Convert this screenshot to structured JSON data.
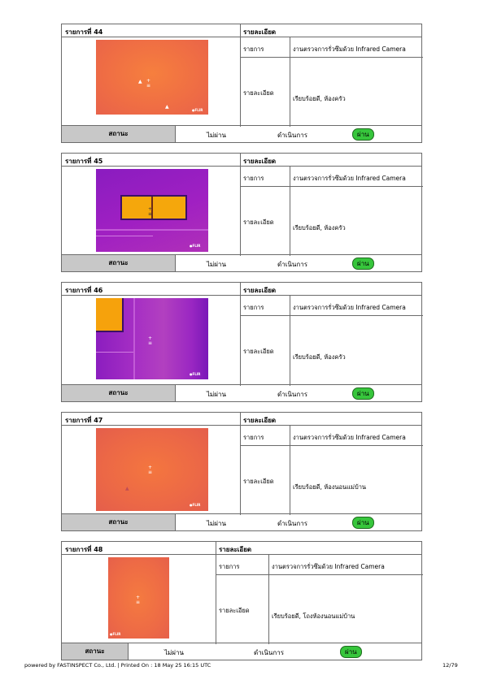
{
  "labels": {
    "item_prefix": "รายการที่",
    "detail_header": "รายละเอียด",
    "item_label": "รายการ",
    "detail_label": "รายละเอียด",
    "status_label": "สถานะ",
    "option_fail": "ไม่ผ่าน",
    "option_in_progress": "ดำเนินการ",
    "option_pass": "ผ่าน",
    "flir_mark": "●FLIR"
  },
  "items": [
    {
      "number": "44",
      "title": "งานตรวจการรั่วซึมด้วย Infrared Camera",
      "detail": "เรียบร้อยดี, ห้องครัว"
    },
    {
      "number": "45",
      "title": "งานตรวจการรั่วซึมด้วย Infrared Camera",
      "detail": "เรียบร้อยดี, ห้องครัว"
    },
    {
      "number": "46",
      "title": "งานตรวจการรั่วซึมด้วย Infrared Camera",
      "detail": "เรียบร้อยดี, ห้องครัว"
    },
    {
      "number": "47",
      "title": "งานตรวจการรั่วซึมด้วย Infrared Camera",
      "detail": "เรียบร้อยดี, ห้องนอนแม่บ้าน"
    },
    {
      "number": "48",
      "title": "งานตรวจการรั่วซึมด้วย Infrared Camera",
      "detail": "เรียบร้อยดี, โถงห้องนอนแม่บ้าน"
    }
  ],
  "colors": {
    "pass_badge": "#37c63c",
    "status_bg": "#c8c8c8",
    "border": "#6b6b6b"
  },
  "footer": {
    "left": "powered by FASTINSPECT Co., Ltd. | Printed On : 18 May 25 16:15 UTC",
    "page": "12/79"
  }
}
